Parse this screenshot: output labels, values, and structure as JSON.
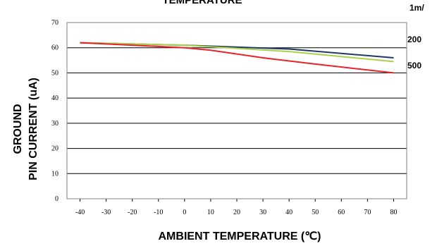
{
  "chart_data": {
    "type": "line",
    "title": "TEMPERATURE",
    "xlabel": "AMBIENT TEMPERATURE (℃)",
    "ylabel_line1": "GROUND",
    "ylabel_line2": "PIN CURRENT (uA)",
    "xlim": [
      -45,
      85
    ],
    "ylim": [
      0,
      70
    ],
    "x_ticks": [
      -40,
      -30,
      -20,
      -10,
      0,
      10,
      20,
      30,
      40,
      50,
      60,
      70,
      80
    ],
    "y_ticks": [
      0,
      10,
      20,
      30,
      40,
      50,
      60,
      70
    ],
    "grid": "horizontal",
    "legend_labels": [
      "1m/",
      "200",
      "500"
    ],
    "series": [
      {
        "color": "#1f3864",
        "x": [
          -40,
          0,
          40,
          80
        ],
        "y": [
          62,
          61,
          59.5,
          56
        ]
      },
      {
        "color": "#a8d24a",
        "x": [
          -40,
          0,
          40,
          80
        ],
        "y": [
          62,
          61,
          58.5,
          54.5
        ]
      },
      {
        "color": "#e8242a",
        "x": [
          -40,
          -20,
          0,
          10,
          30,
          50,
          80
        ],
        "y": [
          62,
          61,
          60,
          59,
          56,
          53.5,
          50
        ]
      }
    ]
  }
}
